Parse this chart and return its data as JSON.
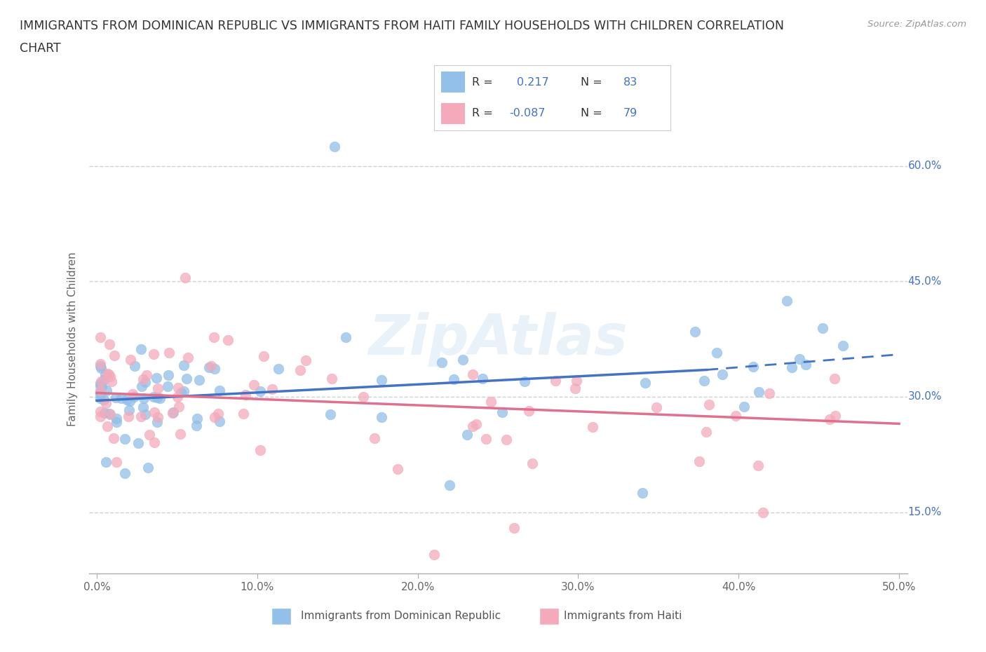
{
  "title_line1": "IMMIGRANTS FROM DOMINICAN REPUBLIC VS IMMIGRANTS FROM HAITI FAMILY HOUSEHOLDS WITH CHILDREN CORRELATION",
  "title_line2": "CHART",
  "source_text": "Source: ZipAtlas.com",
  "ylabel": "Family Households with Children",
  "xlim": [
    -0.005,
    0.505
  ],
  "ylim": [
    0.07,
    0.68
  ],
  "xticks": [
    0.0,
    0.1,
    0.2,
    0.3,
    0.4,
    0.5
  ],
  "xticklabels": [
    "0.0%",
    "10.0%",
    "20.0%",
    "30.0%",
    "40.0%",
    "50.0%"
  ],
  "yticks": [
    0.15,
    0.3,
    0.45,
    0.6
  ],
  "yticklabels": [
    "15.0%",
    "30.0%",
    "45.0%",
    "60.0%"
  ],
  "grid_color": "#d0d0d0",
  "background_color": "#ffffff",
  "blue_color": "#92C0E8",
  "pink_color": "#F4AABB",
  "blue_line_color": "#4472C4",
  "pink_line_color": "#E07090",
  "tick_color": "#4472C4",
  "R_blue": 0.217,
  "N_blue": 83,
  "R_pink": -0.087,
  "N_pink": 79,
  "legend_label_blue": "Immigrants from Dominican Republic",
  "legend_label_pink": "Immigrants from Haiti",
  "watermark": "ZipAtlas",
  "blue_trend_x_start": 0.0,
  "blue_trend_x_solid_end": 0.38,
  "blue_trend_x_dashed_end": 0.5,
  "blue_trend_y_start": 0.295,
  "blue_trend_y_solid_end": 0.335,
  "blue_trend_y_dashed_end": 0.355,
  "pink_trend_x_start": 0.0,
  "pink_trend_x_end": 0.5,
  "pink_trend_y_start": 0.305,
  "pink_trend_y_end": 0.265
}
